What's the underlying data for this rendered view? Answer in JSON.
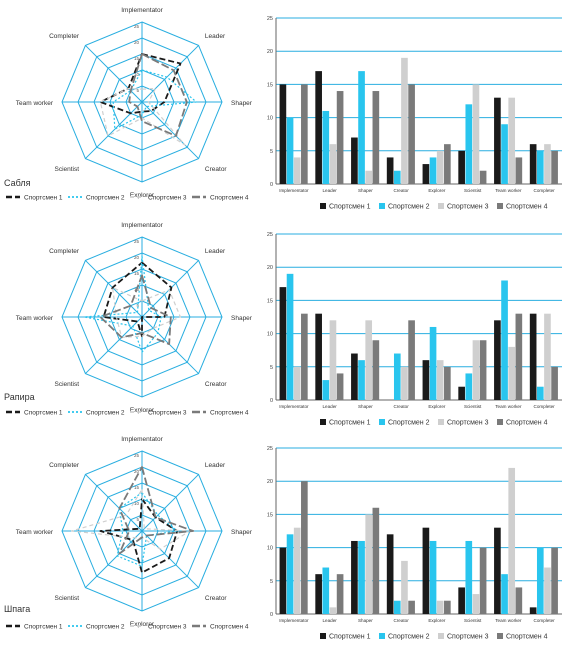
{
  "colors": {
    "s1": "#1a1a1a",
    "s2": "#29c5ee",
    "s3": "#cfcfcf",
    "s4": "#7a7a7a",
    "grid": "#29aee0"
  },
  "legend": [
    "Спортсмен 1",
    "Спортсмен 2",
    "Спортсмен 3",
    "Спортсмен 4"
  ],
  "axes": [
    "Implementator",
    "Leader",
    "Shaper",
    "Creator",
    "Explorer",
    "Scientist",
    "Team worker",
    "Completer"
  ],
  "bar_categories": [
    "Implementator",
    "Leader",
    "Shaper",
    "Creator",
    "Explorer",
    "Scientist",
    "Team worker",
    "Completer"
  ],
  "sections": [
    {
      "label": "Сабля"
    },
    {
      "label": "Рапира"
    },
    {
      "label": "Шпага"
    }
  ],
  "chart_data": [
    {
      "type": "radar",
      "ylim": [
        0,
        25
      ],
      "ticks": [
        5,
        10,
        15,
        20,
        25
      ],
      "categories": [
        "Implementator",
        "Leader",
        "Shaper",
        "Creator",
        "Explorer",
        "Scientist",
        "Team worker",
        "Completer"
      ],
      "series": [
        {
          "name": "Спортсмен 1",
          "values": [
            15,
            17,
            7,
            4,
            3,
            5,
            13,
            6
          ]
        },
        {
          "name": "Спортсмен 2",
          "values": [
            10,
            11,
            17,
            2,
            4,
            12,
            9,
            5
          ]
        },
        {
          "name": "Спортсмен 3",
          "values": [
            4,
            6,
            2,
            19,
            5,
            15,
            13,
            6
          ]
        },
        {
          "name": "Спортсмен 4",
          "values": [
            15,
            14,
            14,
            15,
            6,
            2,
            4,
            5
          ]
        }
      ]
    },
    {
      "type": "bar",
      "ylim": [
        0,
        25
      ],
      "ticks": [
        0,
        5,
        10,
        15,
        20,
        25
      ],
      "categories": [
        "Implementator",
        "Leader",
        "Shaper",
        "Creator",
        "Explorer",
        "Scientist",
        "Team worker",
        "Completer"
      ],
      "series": [
        {
          "name": "Спортсмен 1",
          "values": [
            15,
            17,
            7,
            4,
            3,
            5,
            13,
            6
          ]
        },
        {
          "name": "Спортсмен 2",
          "values": [
            10,
            11,
            17,
            2,
            4,
            12,
            9,
            5
          ]
        },
        {
          "name": "Спортсмен 3",
          "values": [
            4,
            6,
            2,
            19,
            5,
            15,
            13,
            6
          ]
        },
        {
          "name": "Спортсмен 4",
          "values": [
            15,
            14,
            14,
            15,
            6,
            2,
            4,
            5
          ]
        }
      ]
    },
    {
      "type": "radar",
      "ylim": [
        0,
        25
      ],
      "ticks": [
        5,
        10,
        15,
        20,
        25
      ],
      "categories": [
        "Implementator",
        "Leader",
        "Shaper",
        "Creator",
        "Explorer",
        "Scientist",
        "Team worker",
        "Completer"
      ],
      "series": [
        {
          "name": "Спортсмен 1",
          "values": [
            17,
            13,
            7,
            0,
            6,
            2,
            12,
            13
          ]
        },
        {
          "name": "Спортсмен 2",
          "values": [
            19,
            3,
            6,
            7,
            11,
            4,
            18,
            2
          ]
        },
        {
          "name": "Спортсмен 3",
          "values": [
            5,
            12,
            12,
            5,
            6,
            9,
            8,
            13
          ]
        },
        {
          "name": "Спортсмен 4",
          "values": [
            13,
            4,
            9,
            12,
            5,
            9,
            13,
            5
          ]
        }
      ]
    },
    {
      "type": "bar",
      "ylim": [
        0,
        25
      ],
      "ticks": [
        0,
        5,
        10,
        15,
        20,
        25
      ],
      "categories": [
        "Implementator",
        "Leader",
        "Shaper",
        "Creator",
        "Explorer",
        "Scientist",
        "Team worker",
        "Completer"
      ],
      "series": [
        {
          "name": "Спортсмен 1",
          "values": [
            17,
            13,
            7,
            0,
            6,
            2,
            12,
            13
          ]
        },
        {
          "name": "Спортсмен 2",
          "values": [
            19,
            3,
            6,
            7,
            11,
            4,
            18,
            2
          ]
        },
        {
          "name": "Спортсмен 3",
          "values": [
            5,
            12,
            12,
            5,
            6,
            9,
            8,
            13
          ]
        },
        {
          "name": "Спортсмен 4",
          "values": [
            13,
            4,
            9,
            12,
            5,
            9,
            13,
            5
          ]
        }
      ]
    },
    {
      "type": "radar",
      "ylim": [
        0,
        25
      ],
      "ticks": [
        5,
        10,
        15,
        20,
        25
      ],
      "categories": [
        "Implementator",
        "Leader",
        "Shaper",
        "Creator",
        "Explorer",
        "Scientist",
        "Team worker",
        "Completer"
      ],
      "series": [
        {
          "name": "Спортсмен 1",
          "values": [
            10,
            6,
            11,
            12,
            13,
            4,
            13,
            1
          ]
        },
        {
          "name": "Спортсмен 2",
          "values": [
            12,
            7,
            11,
            2,
            11,
            11,
            6,
            10
          ]
        },
        {
          "name": "Спортсмен 3",
          "values": [
            13,
            1,
            15,
            8,
            2,
            3,
            22,
            7
          ]
        },
        {
          "name": "Спортсмен 4",
          "values": [
            20,
            6,
            16,
            2,
            2,
            10,
            4,
            10
          ]
        }
      ]
    },
    {
      "type": "bar",
      "ylim": [
        0,
        25
      ],
      "ticks": [
        0,
        5,
        10,
        15,
        20,
        25
      ],
      "categories": [
        "Implementator",
        "Leader",
        "Shaper",
        "Creator",
        "Explorer",
        "Scientist",
        "Team worker",
        "Completer"
      ],
      "series": [
        {
          "name": "Спортсмен 1",
          "values": [
            10,
            6,
            11,
            12,
            13,
            4,
            13,
            1
          ]
        },
        {
          "name": "Спортсмен 2",
          "values": [
            12,
            7,
            11,
            2,
            11,
            11,
            6,
            10
          ]
        },
        {
          "name": "Спортсмен 3",
          "values": [
            13,
            1,
            15,
            8,
            2,
            3,
            22,
            7
          ]
        },
        {
          "name": "Спортсмен 4",
          "values": [
            20,
            6,
            16,
            2,
            2,
            10,
            4,
            10
          ]
        }
      ]
    }
  ]
}
